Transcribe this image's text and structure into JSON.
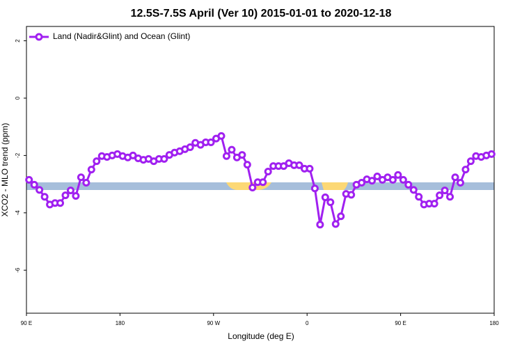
{
  "chart_data": {
    "type": "line",
    "title": "12.5S-7.5S April (Ver 10)   2015-01-01 to 2020-12-18",
    "x_label": "Longitude (deg E)",
    "y_label": "XCO2 - MLO trend (ppm)",
    "legend": "top-left",
    "xlim": [
      90,
      540
    ],
    "xticks": [
      {
        "value": 90,
        "label": "90 E"
      },
      180,
      {
        "value": 270,
        "label": "90 W"
      },
      {
        "value": 360,
        "label": "0"
      },
      {
        "value": 450,
        "label": "90 E"
      },
      {
        "value": 540,
        "label": "180"
      }
    ],
    "ylim": [
      -7.5,
      2.5
    ],
    "yticks": [
      2,
      0,
      -2,
      -4,
      -6
    ],
    "x": [
      92.5,
      97.5,
      102.5,
      107.5,
      112.5,
      117.5,
      122.5,
      127.5,
      132.5,
      137.5,
      142.5,
      147.5,
      152.5,
      157.5,
      162.5,
      167.5,
      172.5,
      177.5,
      182.5,
      187.5,
      192.5,
      197.5,
      202.5,
      207.5,
      212.5,
      217.5,
      222.5,
      227.5,
      232.5,
      237.5,
      242.5,
      247.5,
      252.5,
      257.5,
      262.5,
      267.5,
      272.5,
      277.5,
      282.5,
      287.5,
      292.5,
      297.5,
      302.5,
      307.5,
      312.5,
      317.5,
      322.5,
      327.5,
      332.5,
      337.5,
      342.5,
      347.5,
      352.5,
      357.5,
      362.5,
      367.5,
      372.5,
      377.5,
      382.5,
      387.5,
      392.5,
      397.5,
      402.5,
      407.5,
      412.5,
      417.5,
      422.5,
      427.5,
      432.5,
      437.5,
      442.5,
      447.5,
      452.5,
      457.5,
      462.5,
      467.5,
      472.5,
      477.5,
      482.5,
      487.5,
      492.5,
      497.5,
      502.5,
      507.5,
      512.5,
      517.5,
      522.5,
      527.5,
      532.5,
      537.5
    ],
    "series": [
      {
        "name": "Land (Nadir&Glint) and Ocean (Glint)",
        "color": "#a020f0",
        "values": [
          -2.85,
          -3.02,
          -3.2,
          -3.44,
          -3.71,
          -3.66,
          -3.66,
          -3.39,
          -3.22,
          -3.41,
          -2.76,
          -2.95,
          -2.49,
          -2.2,
          -2.02,
          -2.05,
          -2.0,
          -1.95,
          -2.02,
          -2.07,
          -2.0,
          -2.1,
          -2.15,
          -2.12,
          -2.2,
          -2.12,
          -2.12,
          -1.98,
          -1.9,
          -1.85,
          -1.78,
          -1.71,
          -1.56,
          -1.63,
          -1.54,
          -1.54,
          -1.41,
          -1.32,
          -2.02,
          -1.8,
          -2.07,
          -1.98,
          -2.32,
          -3.12,
          -2.93,
          -2.93,
          -2.56,
          -2.37,
          -2.37,
          -2.37,
          -2.27,
          -2.34,
          -2.34,
          -2.46,
          -2.46,
          -3.15,
          -4.41,
          -3.46,
          -3.63,
          -4.39,
          -4.12,
          -3.34,
          -3.37,
          -3.02,
          -2.95,
          -2.83,
          -2.88,
          -2.73,
          -2.85,
          -2.76,
          -2.85,
          -2.68,
          -2.85,
          -3.02,
          -3.2,
          -3.44,
          -3.71,
          -3.68,
          -3.68,
          -3.39,
          -3.22,
          -3.44,
          -2.76,
          -2.95,
          -2.49,
          -2.2,
          -2.02,
          -2.05,
          -2.0,
          -1.95
        ]
      }
    ]
  }
}
